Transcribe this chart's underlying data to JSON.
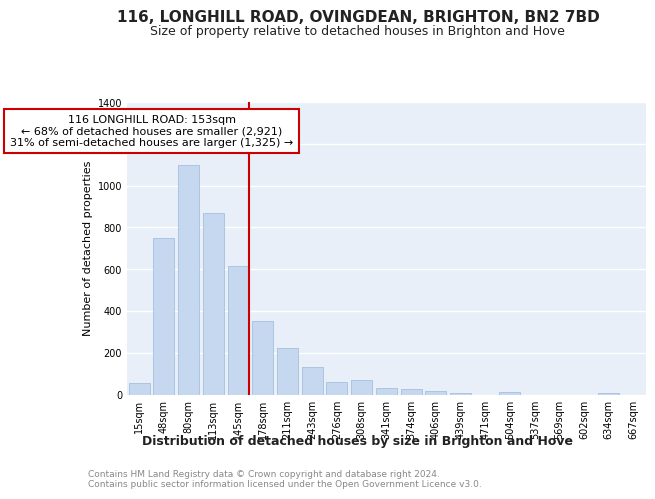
{
  "title": "116, LONGHILL ROAD, OVINGDEAN, BRIGHTON, BN2 7BD",
  "subtitle": "Size of property relative to detached houses in Brighton and Hove",
  "xlabel": "Distribution of detached houses by size in Brighton and Hove",
  "ylabel": "Number of detached properties",
  "categories": [
    "15sqm",
    "48sqm",
    "80sqm",
    "113sqm",
    "145sqm",
    "178sqm",
    "211sqm",
    "243sqm",
    "276sqm",
    "308sqm",
    "341sqm",
    "374sqm",
    "406sqm",
    "439sqm",
    "471sqm",
    "504sqm",
    "537sqm",
    "569sqm",
    "602sqm",
    "634sqm",
    "667sqm"
  ],
  "values": [
    55,
    750,
    1100,
    870,
    615,
    350,
    225,
    130,
    60,
    68,
    30,
    25,
    18,
    10,
    0,
    12,
    0,
    0,
    0,
    10,
    0
  ],
  "bar_color": "#c5d8ef",
  "bar_edge_color": "#9ab8d8",
  "ref_line_x": 4.43,
  "ref_line_color": "#cc0000",
  "ref_line_label": "116 LONGHILL ROAD: 153sqm",
  "annotation_line2": "← 68% of detached houses are smaller (2,921)",
  "annotation_line3": "31% of semi-detached houses are larger (1,325) →",
  "annotation_box_color": "#cc0000",
  "ylim": [
    0,
    1400
  ],
  "yticks": [
    0,
    200,
    400,
    600,
    800,
    1000,
    1200,
    1400
  ],
  "footer": "Contains HM Land Registry data © Crown copyright and database right 2024.\nContains public sector information licensed under the Open Government Licence v3.0.",
  "fig_bg_color": "#ffffff",
  "ax_bg_color": "#e8eff8",
  "grid_color": "#ffffff",
  "title_fontsize": 11,
  "subtitle_fontsize": 9,
  "xlabel_fontsize": 9,
  "ylabel_fontsize": 8,
  "tick_fontsize": 7,
  "annotation_fontsize": 8,
  "footer_fontsize": 6.5
}
